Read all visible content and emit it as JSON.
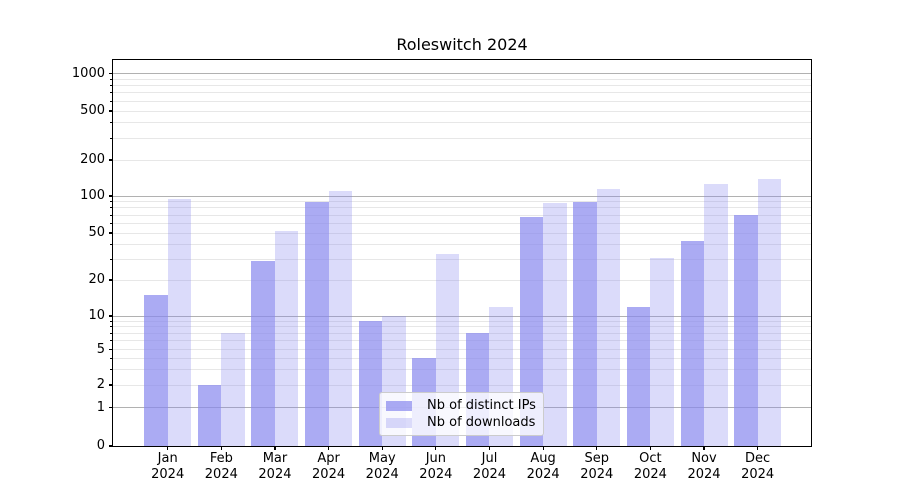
{
  "chart_data": {
    "type": "bar",
    "title": "Roleswitch 2024",
    "categories": [
      "Jan",
      "Feb",
      "Mar",
      "Apr",
      "May",
      "Jun",
      "Jul",
      "Aug",
      "Sep",
      "Oct",
      "Nov",
      "Dec"
    ],
    "category_year": "2024",
    "series": [
      {
        "name": "Nb of distinct IPs",
        "color": "#8888ee",
        "alpha": 0.7,
        "values": [
          15,
          2,
          29,
          90,
          9,
          4,
          7,
          68,
          90,
          12,
          43,
          70
        ]
      },
      {
        "name": "Nb of downloads",
        "color": "#8888ee",
        "alpha": 0.3,
        "values": [
          95,
          7,
          52,
          110,
          10,
          33,
          12,
          88,
          114,
          31,
          125,
          140
        ]
      }
    ],
    "y_axis": {
      "scale": "symlog",
      "tick_values": [
        0,
        1,
        2,
        5,
        10,
        20,
        50,
        100,
        200,
        500,
        1000
      ],
      "tick_labels": [
        "0",
        "1",
        "2",
        "5",
        "10",
        "20",
        "50",
        "100",
        "200",
        "500",
        "1000"
      ]
    },
    "grid": {
      "on": true,
      "major_color": "#b1b1b1",
      "minor_color": "#e7e7e7"
    },
    "legend": {
      "position": "lower center",
      "entries": [
        "Nb of distinct IPs",
        "Nb of downloads"
      ]
    },
    "ylim_top": 1000
  }
}
